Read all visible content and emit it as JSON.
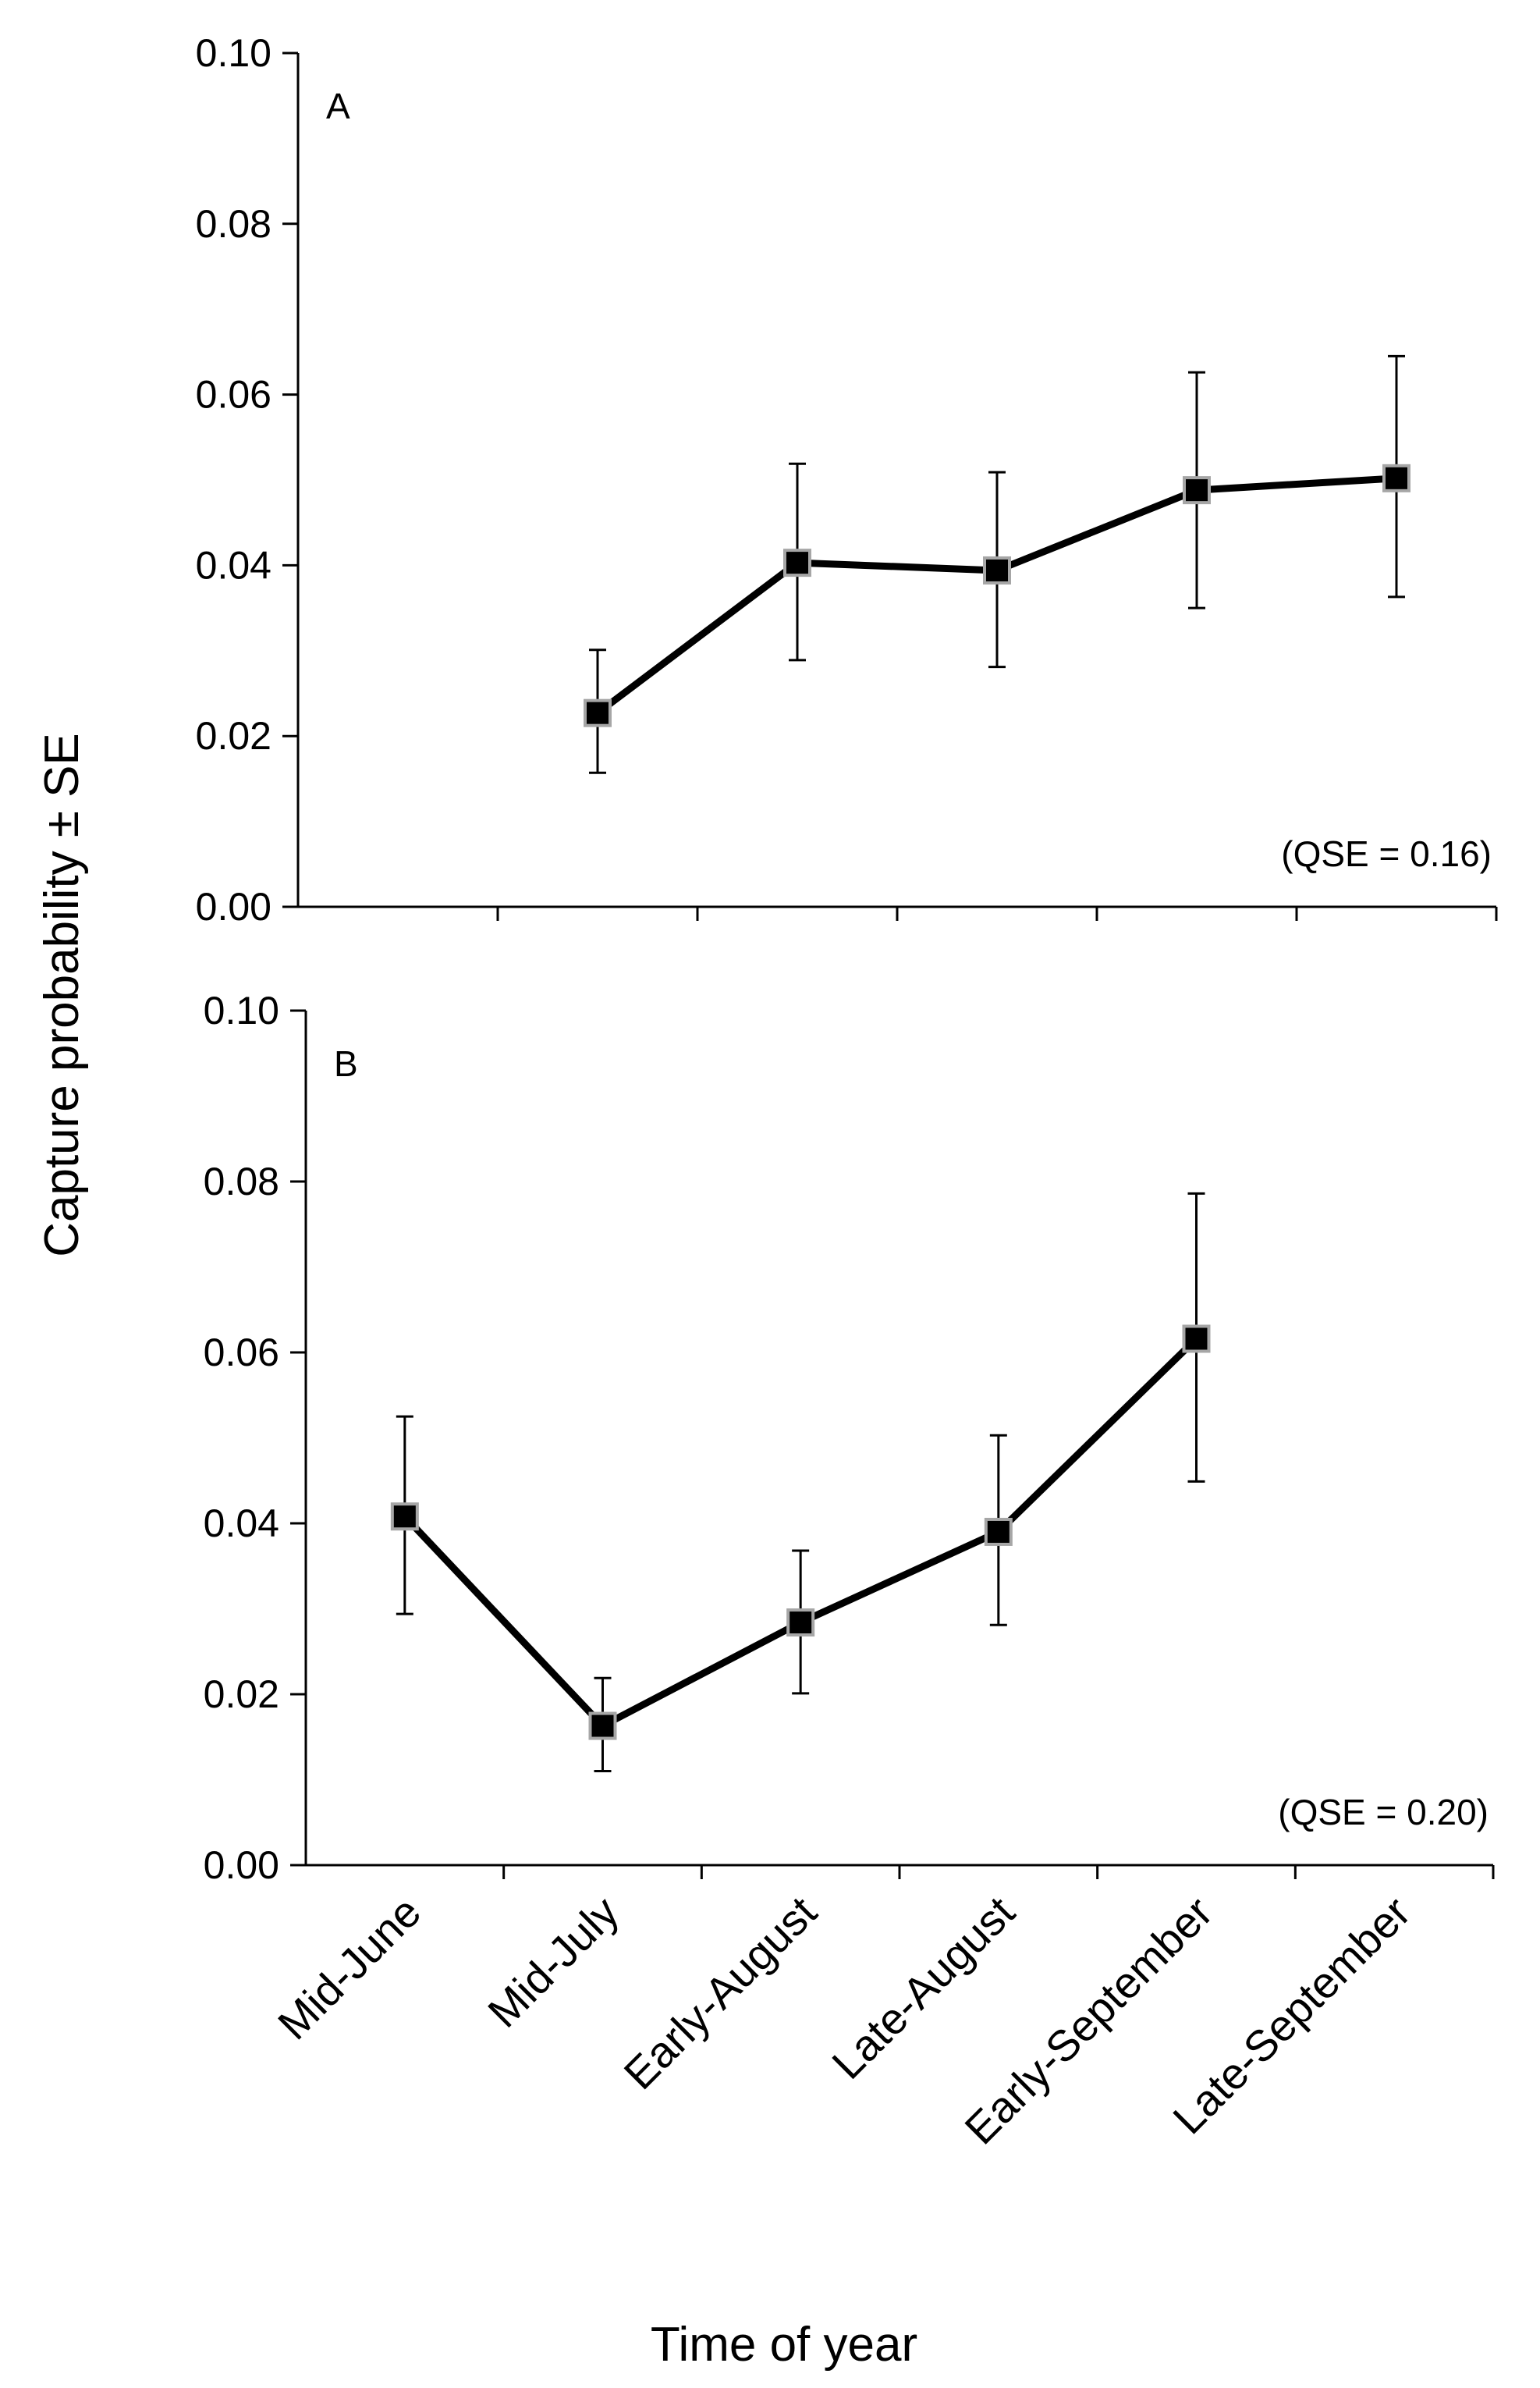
{
  "chart_data": {
    "type": "line",
    "categories": [
      "Mid-June",
      "Mid-July",
      "Early-August",
      "Late-August",
      "Early-September",
      "Late-September"
    ],
    "ylabel": "Capture probability ± SE",
    "xlabel": "Time of year",
    "ylim": [
      0,
      0.1
    ],
    "yticks": [
      "0.00",
      "0.02",
      "0.04",
      "0.06",
      "0.08",
      "0.10"
    ],
    "panels": [
      {
        "label": "A",
        "annotation": "(QSE = 0.16)",
        "values": [
          null,
          0.0227,
          0.0403,
          0.0394,
          0.0488,
          0.0502
        ],
        "lower": [
          null,
          0.0157,
          0.0289,
          0.0281,
          0.035,
          0.0363
        ],
        "upper": [
          null,
          0.0301,
          0.0519,
          0.0509,
          0.0626,
          0.0645
        ]
      },
      {
        "label": "B",
        "annotation": "(QSE = 0.20)",
        "values": [
          0.0408,
          0.0163,
          0.0284,
          0.039,
          0.0616,
          null
        ],
        "lower": [
          0.0294,
          0.011,
          0.0201,
          0.0281,
          0.0449,
          null
        ],
        "upper": [
          0.0525,
          0.0219,
          0.0368,
          0.0503,
          0.0786,
          null
        ]
      }
    ]
  },
  "colors": {
    "line": "#000000",
    "marker_fill": "#000000",
    "marker_edge": "#a6a6a6"
  }
}
